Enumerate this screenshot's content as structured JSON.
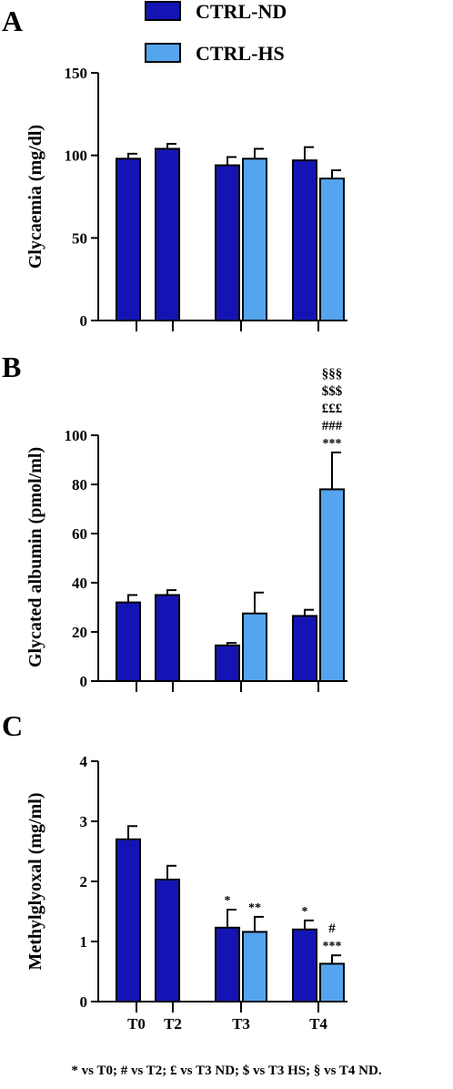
{
  "colors": {
    "nd": "#1414b4",
    "hs": "#54a4ee",
    "axis": "#000000"
  },
  "legend": {
    "items": [
      {
        "label": "CTRL-ND",
        "color": "#1414b4"
      },
      {
        "label": "CTRL-HS",
        "color": "#54a4ee"
      }
    ]
  },
  "footnote": "* vs T0; # vs T2; £ vs T3 ND; $ vs T3 HS; § vs T4 ND.",
  "chart_data": [
    {
      "panel_letter": "A",
      "type": "bar",
      "ylabel": "Glycaemia (mg/dl)",
      "ylim": [
        0,
        150
      ],
      "yticks": [
        0,
        50,
        100,
        150
      ],
      "categories": [
        "T0",
        "T2",
        "T3",
        "T4"
      ],
      "show_category_labels": false,
      "series": [
        {
          "name": "CTRL-ND",
          "values": [
            98,
            104,
            94,
            97
          ],
          "errors": [
            3,
            3,
            5,
            8
          ]
        },
        {
          "name": "CTRL-HS",
          "values": [
            null,
            null,
            98,
            86
          ],
          "errors": [
            null,
            null,
            6,
            5
          ]
        }
      ],
      "annotations": []
    },
    {
      "panel_letter": "B",
      "type": "bar",
      "ylabel": "Glycated albumin (pmol/ml)",
      "ylim": [
        0,
        100
      ],
      "yticks": [
        0,
        20,
        40,
        60,
        80,
        100
      ],
      "categories": [
        "T0",
        "T2",
        "T3",
        "T4"
      ],
      "show_category_labels": false,
      "series": [
        {
          "name": "CTRL-ND",
          "values": [
            32,
            35,
            14.5,
            26.5
          ],
          "errors": [
            3,
            2,
            1,
            2.5
          ]
        },
        {
          "name": "CTRL-HS",
          "values": [
            null,
            null,
            27.5,
            78
          ],
          "errors": [
            null,
            null,
            8.5,
            15
          ]
        }
      ],
      "annotations": [
        {
          "category": 3,
          "series": 1,
          "lines": [
            "§§§",
            "$$$",
            "£££",
            "###",
            "***"
          ]
        }
      ]
    },
    {
      "panel_letter": "C",
      "type": "bar",
      "ylabel": "Methylglyoxal (mg/ml)",
      "ylim": [
        0,
        4
      ],
      "yticks": [
        0,
        1,
        2,
        3,
        4
      ],
      "categories": [
        "T0",
        "T2",
        "T3",
        "T4"
      ],
      "show_category_labels": true,
      "series": [
        {
          "name": "CTRL-ND",
          "values": [
            2.7,
            2.03,
            1.23,
            1.2
          ],
          "errors": [
            0.22,
            0.23,
            0.3,
            0.15
          ]
        },
        {
          "name": "CTRL-HS",
          "values": [
            null,
            null,
            1.16,
            0.63
          ],
          "errors": [
            null,
            null,
            0.25,
            0.14
          ]
        }
      ],
      "annotations": [
        {
          "category": 2,
          "series": 0,
          "lines": [
            "*"
          ]
        },
        {
          "category": 2,
          "series": 1,
          "lines": [
            "**"
          ]
        },
        {
          "category": 3,
          "series": 0,
          "lines": [
            "*"
          ]
        },
        {
          "category": 3,
          "series": 1,
          "lines": [
            "#",
            "***"
          ]
        }
      ]
    }
  ]
}
